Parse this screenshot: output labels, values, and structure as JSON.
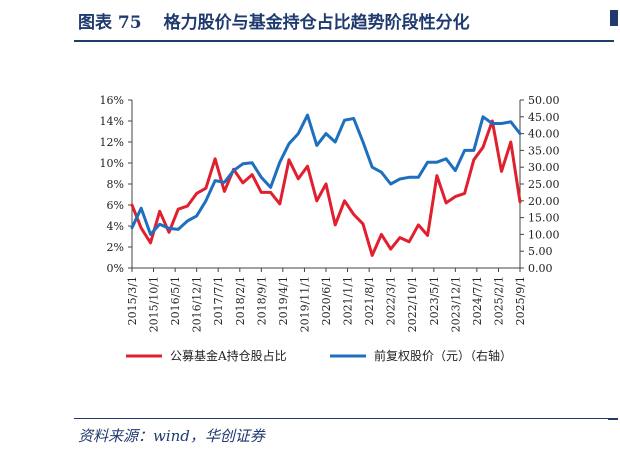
{
  "header": {
    "figure_label": "图表 75",
    "title": "格力股价与基金持仓占比趋势阶段性分化"
  },
  "footer": {
    "source": "资料来源：wind，华创证券"
  },
  "colors": {
    "brand": "#1f3a6e",
    "series_holding": "#e0202e",
    "series_price": "#1f6fbf"
  },
  "chart_data": {
    "type": "line",
    "title": "",
    "x": [
      "2015/3/1",
      "2015/6/1",
      "2015/9/1",
      "2015/12/1",
      "2016/3/1",
      "2016/6/1",
      "2016/9/1",
      "2016/12/1",
      "2017/3/1",
      "2017/6/1",
      "2017/9/1",
      "2017/12/1",
      "2018/3/1",
      "2018/6/1",
      "2018/9/1",
      "2018/12/1",
      "2019/3/1",
      "2019/6/1",
      "2019/9/1",
      "2019/12/1",
      "2020/3/1",
      "2020/6/1",
      "2020/9/1",
      "2020/12/1",
      "2021/3/1",
      "2021/6/1",
      "2021/9/1",
      "2021/12/1",
      "2022/3/1",
      "2022/6/1",
      "2022/9/1",
      "2022/12/1",
      "2023/3/1",
      "2023/6/1",
      "2023/9/1",
      "2023/12/1",
      "2024/3/1",
      "2024/6/1",
      "2024/9/1",
      "2024/12/1",
      "2025/3/1",
      "2025/6/1",
      "2025/9/1"
    ],
    "x_tick_labels": [
      "2015/3/1",
      "2015/10/1",
      "2016/5/1",
      "2016/12/1",
      "2017/7/1",
      "2018/2/1",
      "2018/9/1",
      "2019/4/1",
      "2019/11/1",
      "2020/6/1",
      "2021/1/1",
      "2021/8/1",
      "2022/3/1",
      "2022/10/1",
      "2023/5/1",
      "2023/12/1",
      "2024/7/1",
      "2025/2/1",
      "2025/9/1"
    ],
    "x_tick_positions": [
      0,
      2.33,
      4.67,
      7,
      9.33,
      11.67,
      14,
      16.33,
      18.67,
      21,
      23.33,
      25.67,
      28,
      30.33,
      32.67,
      35,
      37.33,
      39.67,
      42
    ],
    "y_left": {
      "min": 0,
      "max": 16,
      "ticks": [
        "0%",
        "2%",
        "4%",
        "6%",
        "8%",
        "10%",
        "12%",
        "14%",
        "16%"
      ],
      "tick_values": [
        0,
        2,
        4,
        6,
        8,
        10,
        12,
        14,
        16
      ]
    },
    "y_right": {
      "min": 0,
      "max": 50,
      "ticks": [
        "0.00",
        "5.00",
        "10.00",
        "15.00",
        "20.00",
        "25.00",
        "30.00",
        "35.00",
        "40.00",
        "45.00",
        "50.00"
      ],
      "tick_values": [
        0,
        5,
        10,
        15,
        20,
        25,
        30,
        35,
        40,
        45,
        50
      ]
    },
    "grid": false,
    "legend_position": "bottom",
    "series": [
      {
        "name": "公募基金A持仓股占比",
        "axis": "left",
        "values": [
          6.0,
          3.8,
          2.4,
          5.4,
          3.4,
          5.6,
          5.9,
          7.1,
          7.6,
          10.4,
          7.3,
          9.4,
          8.1,
          8.9,
          7.2,
          7.2,
          6.1,
          10.3,
          8.5,
          9.7,
          6.4,
          8.0,
          4.1,
          6.4,
          5.1,
          4.2,
          1.2,
          3.2,
          1.8,
          2.9,
          2.5,
          4.1,
          3.1,
          8.8,
          6.2,
          6.8,
          7.1,
          10.3,
          11.5,
          14.0,
          9.2,
          12.0,
          6.3
        ]
      },
      {
        "name": "前复权股价（元）（右轴）",
        "axis": "right",
        "values": [
          12.0,
          17.8,
          10.0,
          13.0,
          11.8,
          11.5,
          14.0,
          15.5,
          20.0,
          26.0,
          25.5,
          29.0,
          31.0,
          31.3,
          27.0,
          24.0,
          31.5,
          37.0,
          40.0,
          45.5,
          36.5,
          40.0,
          37.5,
          44.0,
          44.5,
          37.5,
          30.0,
          28.5,
          25.0,
          26.5,
          27.0,
          27.0,
          31.5,
          31.5,
          32.5,
          29.0,
          35.0,
          35.0,
          45.0,
          43.0,
          43.0,
          43.5,
          40.0
        ]
      }
    ]
  }
}
